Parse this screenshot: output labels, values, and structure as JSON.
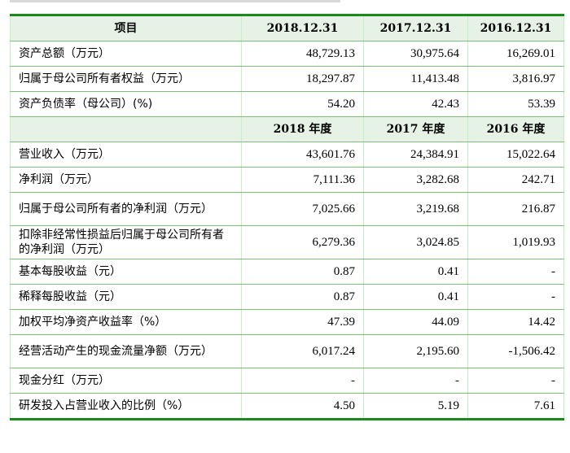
{
  "table": {
    "header": {
      "item": "项目",
      "cols": [
        "2018.12.31",
        "2017.12.31",
        "2016.12.31"
      ]
    },
    "section1": [
      {
        "label": "资产总额（万元）",
        "values": [
          "48,729.13",
          "30,975.64",
          "16,269.01"
        ]
      },
      {
        "label": "归属于母公司所有者权益（万元）",
        "values": [
          "18,297.87",
          "11,413.48",
          "3,816.97"
        ]
      },
      {
        "label": "资产负债率（母公司）(%)",
        "values": [
          "54.20",
          "42.43",
          "53.39"
        ]
      }
    ],
    "subheader": {
      "item": "",
      "cols": [
        "2018 年度",
        "2017 年度",
        "2016 年度"
      ]
    },
    "section2": [
      {
        "label": "营业收入（万元）",
        "values": [
          "43,601.76",
          "24,384.91",
          "15,022.64"
        ]
      },
      {
        "label": "净利润（万元）",
        "values": [
          "7,111.36",
          "3,282.68",
          "242.71"
        ]
      },
      {
        "label": "归属于母公司所有者的净利润（万元）",
        "values": [
          "7,025.66",
          "3,219.68",
          "216.87"
        ]
      },
      {
        "label": "扣除非经常性损益后归属于母公司所有者的净利润（万元）",
        "values": [
          "6,279.36",
          "3,024.85",
          "1,019.93"
        ]
      },
      {
        "label": "基本每股收益（元）",
        "values": [
          "0.87",
          "0.41",
          "-"
        ]
      },
      {
        "label": "稀释每股收益（元）",
        "values": [
          "0.87",
          "0.41",
          "-"
        ]
      },
      {
        "label": "加权平均净资产收益率（%）",
        "values": [
          "47.39",
          "44.09",
          "14.42"
        ]
      },
      {
        "label": "经营活动产生的现金流量净额（万元）",
        "values": [
          "6,017.24",
          "2,195.60",
          "-1,506.42"
        ]
      },
      {
        "label": "现金分红（万元）",
        "values": [
          "-",
          "-",
          "-"
        ]
      },
      {
        "label": "研发投入占营业收入的比例（%）",
        "values": [
          "4.50",
          "5.19",
          "7.61"
        ]
      }
    ]
  }
}
